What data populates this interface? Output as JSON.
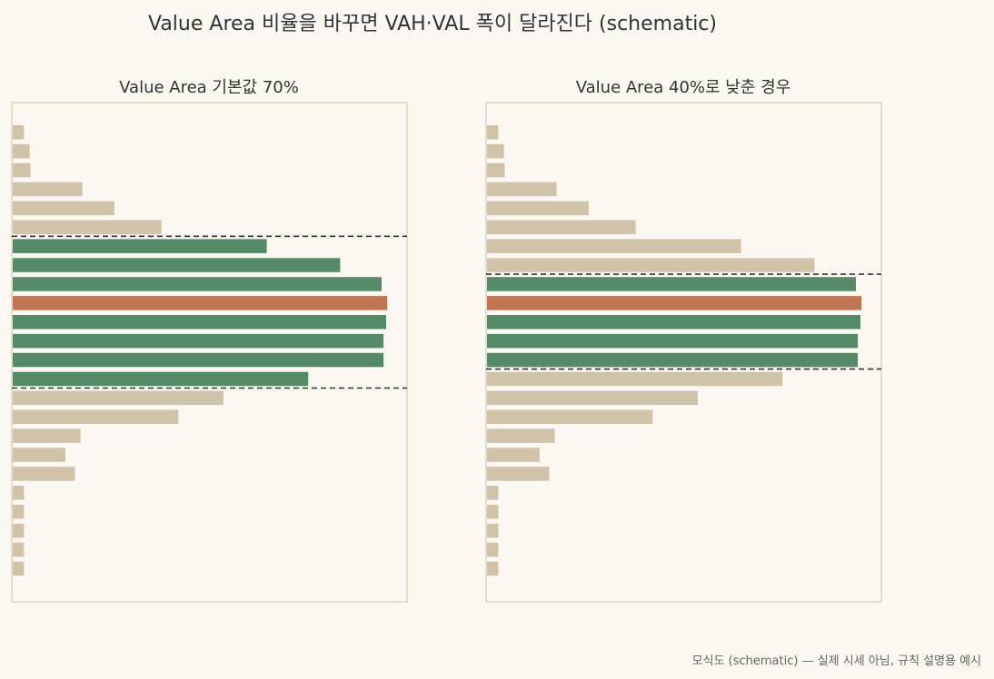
{
  "title": "Value Area 비율을 바꾸면 VAH·VAL 폭이 달라진다 (schematic)",
  "footnote": "모식도 (schematic) — 실제 시세 아님, 규칙 설명용 예시",
  "colors": {
    "background": "#fbf7f1",
    "frame": "#dcd3c0",
    "outside_bar": "#cfc3aa",
    "value_area_bar": "#558a67",
    "poc_bar": "#c07450",
    "boundary_line": "#333333"
  },
  "chart_data": [
    {
      "type": "bar",
      "orientation": "horizontal",
      "title": "Value Area 기본값 70%",
      "xlim": [
        0,
        1.05
      ],
      "levels": 24,
      "values": [
        0.03,
        0.045,
        0.047,
        0.185,
        0.27,
        0.395,
        0.675,
        0.87,
        0.98,
        0.995,
        0.992,
        0.985,
        0.985,
        0.785,
        0.56,
        0.44,
        0.18,
        0.14,
        0.165,
        0.03,
        0.03,
        0.03,
        0.03,
        0.03
      ],
      "poc_index": 9,
      "value_area_range": [
        6,
        13
      ],
      "grid": false
    },
    {
      "type": "bar",
      "orientation": "horizontal",
      "title": "Value Area 40%로 낮춘 경우",
      "xlim": [
        0,
        1.05
      ],
      "levels": 24,
      "values": [
        0.03,
        0.045,
        0.047,
        0.185,
        0.27,
        0.395,
        0.675,
        0.87,
        0.98,
        0.995,
        0.992,
        0.985,
        0.985,
        0.785,
        0.56,
        0.44,
        0.18,
        0.14,
        0.165,
        0.03,
        0.03,
        0.03,
        0.03,
        0.03
      ],
      "poc_index": 9,
      "value_area_range": [
        8,
        12
      ],
      "grid": false
    }
  ]
}
